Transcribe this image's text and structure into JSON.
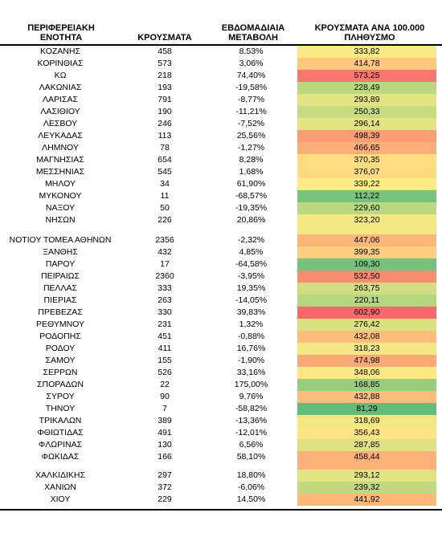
{
  "header": {
    "region": "ΠΕΡΙΦΕΡΕΙΑΚΗ ΕΝΟΤΗΤΑ",
    "cases": "ΚΡΟΥΣΜΑΤΑ",
    "weekly_change": "ΕΒΔΟΜΑΔΙΑΙΑ ΜΕΤΑΒΟΛΗ",
    "per100k": "ΚΡΟΥΣΜΑΤΑ ΑΝΑ 100.000 ΠΛΗΘΥΣΜΟ"
  },
  "color_scale": {
    "low": "#63be7b",
    "mid": "#ffeb84",
    "high": "#f8696b",
    "min": 81.29,
    "max": 602.9
  },
  "groups": [
    [
      {
        "region": "ΚΟΖΑΝΗΣ",
        "cases": "458",
        "change": "8,53%",
        "per100k": "333,82"
      },
      {
        "region": "ΚΟΡΙΝΘΙΑΣ",
        "cases": "573",
        "change": "3,06%",
        "per100k": "414,78"
      },
      {
        "region": "ΚΩ",
        "cases": "218",
        "change": "74,40%",
        "per100k": "573,25"
      },
      {
        "region": "ΛΑΚΩΝΙΑΣ",
        "cases": "193",
        "change": "-19,58%",
        "per100k": "228,49"
      },
      {
        "region": "ΛΑΡΙΣΑΣ",
        "cases": "791",
        "change": "-8,77%",
        "per100k": "293,89"
      },
      {
        "region": "ΛΑΣΙΘΙΟΥ",
        "cases": "190",
        "change": "-11,21%",
        "per100k": "250,33"
      },
      {
        "region": "ΛΕΣΒΟΥ",
        "cases": "246",
        "change": "-7,52%",
        "per100k": "296,14"
      },
      {
        "region": "ΛΕΥΚΑΔΑΣ",
        "cases": "113",
        "change": "25,56%",
        "per100k": "498,39"
      },
      {
        "region": "ΛΗΜΝΟΥ",
        "cases": "78",
        "change": "-1,27%",
        "per100k": "466,65"
      },
      {
        "region": "ΜΑΓΝΗΣΙΑΣ",
        "cases": "654",
        "change": "8,28%",
        "per100k": "370,35"
      },
      {
        "region": "ΜΕΣΣΗΝΙΑΣ",
        "cases": "545",
        "change": "1,68%",
        "per100k": "376,07"
      },
      {
        "region": "ΜΗΛΟΥ",
        "cases": "34",
        "change": "61,90%",
        "per100k": "339,22"
      },
      {
        "region": "ΜΥΚΟΝΟΥ",
        "cases": "11",
        "change": "-68,57%",
        "per100k": "112,22"
      },
      {
        "region": "ΝΑΞΟΥ",
        "cases": "50",
        "change": "-19,35%",
        "per100k": "229,60"
      },
      {
        "region": "ΝΗΣΩΝ",
        "cases": "226",
        "change": "20,86%",
        "per100k": "323,20"
      }
    ],
    [
      {
        "region": "ΝΟΤΙΟΥ ΤΟΜΕΑ ΑΘΗΝΩΝ",
        "cases": "2356",
        "change": "-2,32%",
        "per100k": "447,06"
      },
      {
        "region": "ΞΑΝΘΗΣ",
        "cases": "432",
        "change": "4,85%",
        "per100k": "399,35"
      },
      {
        "region": "ΠΑΡΟΥ",
        "cases": "17",
        "change": "-64,58%",
        "per100k": "109,30"
      },
      {
        "region": "ΠΕΙΡΑΙΩΣ",
        "cases": "2360",
        "change": "-3,95%",
        "per100k": "532,50"
      },
      {
        "region": "ΠΕΛΛΑΣ",
        "cases": "333",
        "change": "19,35%",
        "per100k": "263,75"
      },
      {
        "region": "ΠΙΕΡΙΑΣ",
        "cases": "263",
        "change": "-14,05%",
        "per100k": "220,11"
      },
      {
        "region": "ΠΡΕΒΕΖΑΣ",
        "cases": "330",
        "change": "39,83%",
        "per100k": "602,90"
      },
      {
        "region": "ΡΕΘΥΜΝΟΥ",
        "cases": "231",
        "change": "1,32%",
        "per100k": "276,42"
      },
      {
        "region": "ΡΟΔΟΠΗΣ",
        "cases": "451",
        "change": "-0,88%",
        "per100k": "432,08"
      },
      {
        "region": "ΡΟΔΟΥ",
        "cases": "411",
        "change": "16,76%",
        "per100k": "318,23"
      },
      {
        "region": "ΣΑΜΟΥ",
        "cases": "155",
        "change": "-1,90%",
        "per100k": "474,98"
      },
      {
        "region": "ΣΕΡΡΩΝ",
        "cases": "526",
        "change": "33,16%",
        "per100k": "348,06"
      },
      {
        "region": "ΣΠΟΡΑΔΩΝ",
        "cases": "22",
        "change": "175,00%",
        "per100k": "168,85"
      },
      {
        "region": "ΣΥΡΟΥ",
        "cases": "90",
        "change": "9,76%",
        "per100k": "432,88"
      },
      {
        "region": "ΤΗΝΟΥ",
        "cases": "7",
        "change": "-58,82%",
        "per100k": "81,29"
      },
      {
        "region": "ΤΡΙΚΑΛΩΝ",
        "cases": "389",
        "change": "-13,36%",
        "per100k": "318,69"
      },
      {
        "region": "ΦΘΙΩΤΙΔΑΣ",
        "cases": "491",
        "change": "-12,01%",
        "per100k": "356,43"
      },
      {
        "region": "ΦΛΩΡΙΝΑΣ",
        "cases": "130",
        "change": "6,56%",
        "per100k": "287,85"
      },
      {
        "region": "ΦΩΚΙΔΑΣ",
        "cases": "166",
        "change": "58,10%",
        "per100k": "458,44"
      }
    ],
    [
      {
        "region": "ΧΑΛΚΙΔΙΚΗΣ",
        "cases": "297",
        "change": "18,80%",
        "per100k": "293,12"
      },
      {
        "region": "ΧΑΝΙΩΝ",
        "cases": "372",
        "change": "-6,06%",
        "per100k": "239,32"
      },
      {
        "region": "ΧΙΟΥ",
        "cases": "229",
        "change": "14,50%",
        "per100k": "441,92"
      }
    ]
  ]
}
